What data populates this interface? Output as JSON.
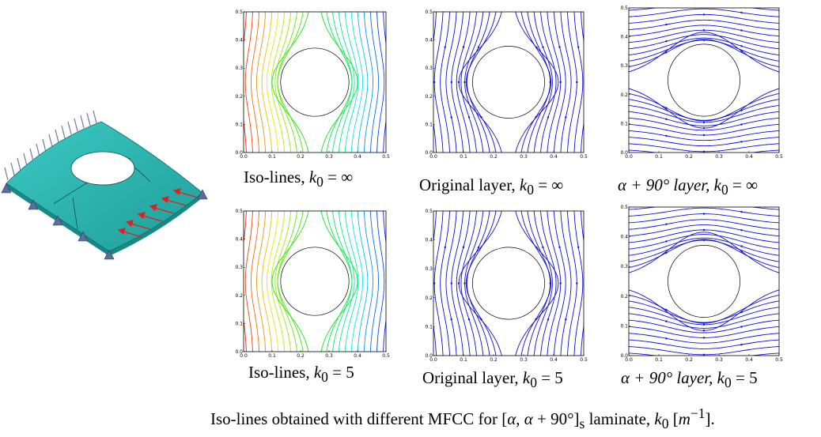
{
  "figure": {
    "panels": [
      {
        "id": "iso-inf",
        "type": "iso",
        "caption_prefix": "Iso-lines, ",
        "k_symbol": "k",
        "k_sub": "0",
        "k_value": "∞"
      },
      {
        "id": "orig-inf",
        "type": "stream_orig",
        "caption_prefix": "Original layer, ",
        "k_symbol": "k",
        "k_sub": "0",
        "k_value": "∞"
      },
      {
        "id": "perp-inf",
        "type": "stream_perp",
        "caption_prefix": "α + 90° layer, ",
        "k_symbol": "k",
        "k_sub": "0",
        "k_value": "∞"
      },
      {
        "id": "iso-5",
        "type": "iso",
        "caption_prefix": "Iso-lines, ",
        "k_symbol": "k",
        "k_sub": "0",
        "k_value": "5"
      },
      {
        "id": "orig-5",
        "type": "stream_orig",
        "caption_prefix": "Original layer, ",
        "k_symbol": "k",
        "k_sub": "0",
        "k_value": "5"
      },
      {
        "id": "perp-5",
        "type": "stream_perp",
        "caption_prefix": "α + 90° layer, ",
        "k_symbol": "k",
        "k_sub": "0",
        "k_value": "5"
      }
    ],
    "x_ticks": [
      "0.0",
      "0.1",
      "0.2",
      "0.3",
      "0.4",
      "0.5"
    ],
    "y_ticks": [
      "0.0",
      "0.1",
      "0.2",
      "0.3",
      "0.4",
      "0.5"
    ],
    "domain": {
      "xlim": [
        0,
        0.5
      ],
      "ylim": [
        0,
        0.5
      ],
      "hole_center": [
        0.25,
        0.25
      ],
      "hole_radius": 0.12
    },
    "colors": {
      "stream": "#1010d0",
      "plate": "#2bb5b0",
      "load_arrow": "#e02020",
      "support": "#5a6e9a"
    },
    "footer": {
      "text1": "Iso-lines obtained with different MFCC for [",
      "alpha1": "α",
      "text2": ", ",
      "alpha2": "α",
      "text3": " + 90°]",
      "sub": "s",
      "text4": " laminate, ",
      "k": "k",
      "k_sub": "0",
      "text5": " [",
      "m": "m",
      "exp": "−1",
      "text6": "]."
    }
  }
}
